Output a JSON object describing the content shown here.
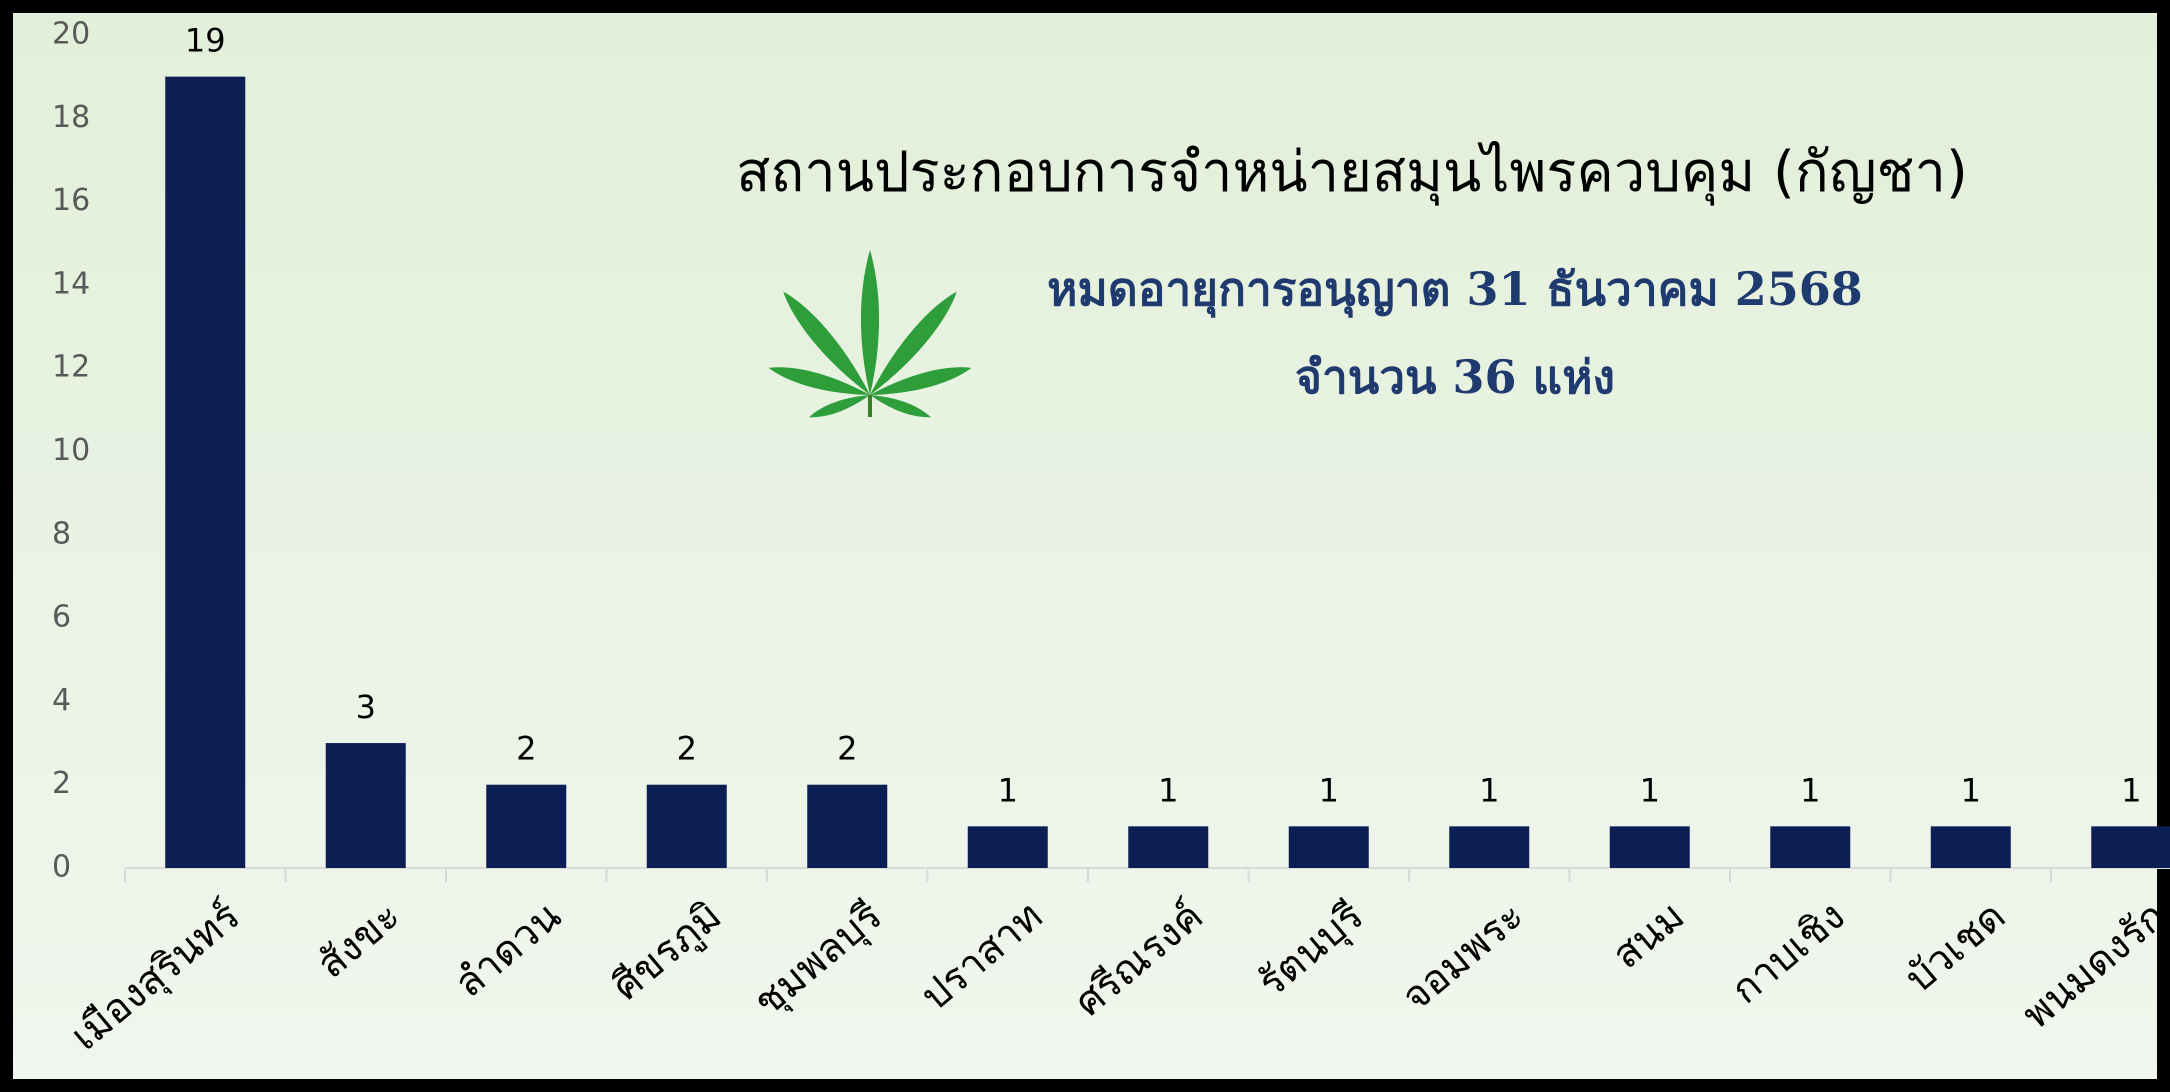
{
  "chart_data": {
    "type": "bar",
    "title": "สถานประกอบการจำหน่ายสมุนไพรควบคุม (กัญชา)",
    "subtitle": "หมดอายุการอนุญาต 31 ธันวาคม 2568",
    "annotation": "จำนวน 36 แห่ง",
    "categories": [
      "เมืองสุรินทร์",
      "สังขะ",
      "ลำดวน",
      "ศีขรภูมิ",
      "ชุมพลบุรี",
      "ปราสาท",
      "ศรีณรงค์",
      "รัตนบุรี",
      "จอมพระ",
      "สนม",
      "กาบเชิง",
      "บัวเชด",
      "พนมดงรัก"
    ],
    "values": [
      19,
      3,
      2,
      2,
      2,
      1,
      1,
      1,
      1,
      1,
      1,
      1,
      1
    ],
    "color": "#0c1f55",
    "ylim": [
      0,
      20
    ],
    "yticks": [
      0,
      2,
      4,
      6,
      8,
      10,
      12,
      14,
      16,
      18,
      20
    ],
    "grid": false
  }
}
